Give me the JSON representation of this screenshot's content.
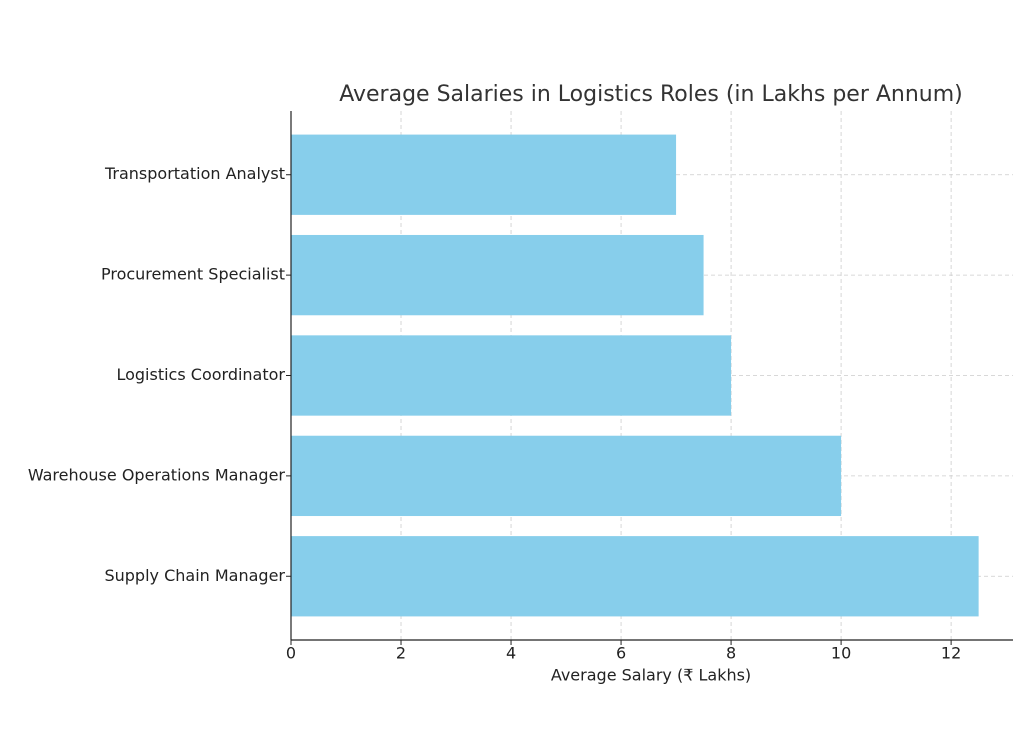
{
  "chart_data": {
    "type": "barh",
    "title": "Average Salaries in Logistics Roles (in Lakhs per Annum)",
    "x_label": "Average Salary (₹ Lakhs)",
    "categories": [
      "Supply Chain Manager",
      "Warehouse Operations Manager",
      "Logistics Coordinator",
      "Procurement Specialist",
      "Transportation Analyst"
    ],
    "values": [
      12.5,
      10,
      8,
      7.5,
      7
    ],
    "color": "#87ceeb",
    "xlim": [
      0,
      13.125
    ],
    "xticks": [
      0,
      2,
      4,
      6,
      8,
      10,
      12
    ],
    "grid": true
  }
}
